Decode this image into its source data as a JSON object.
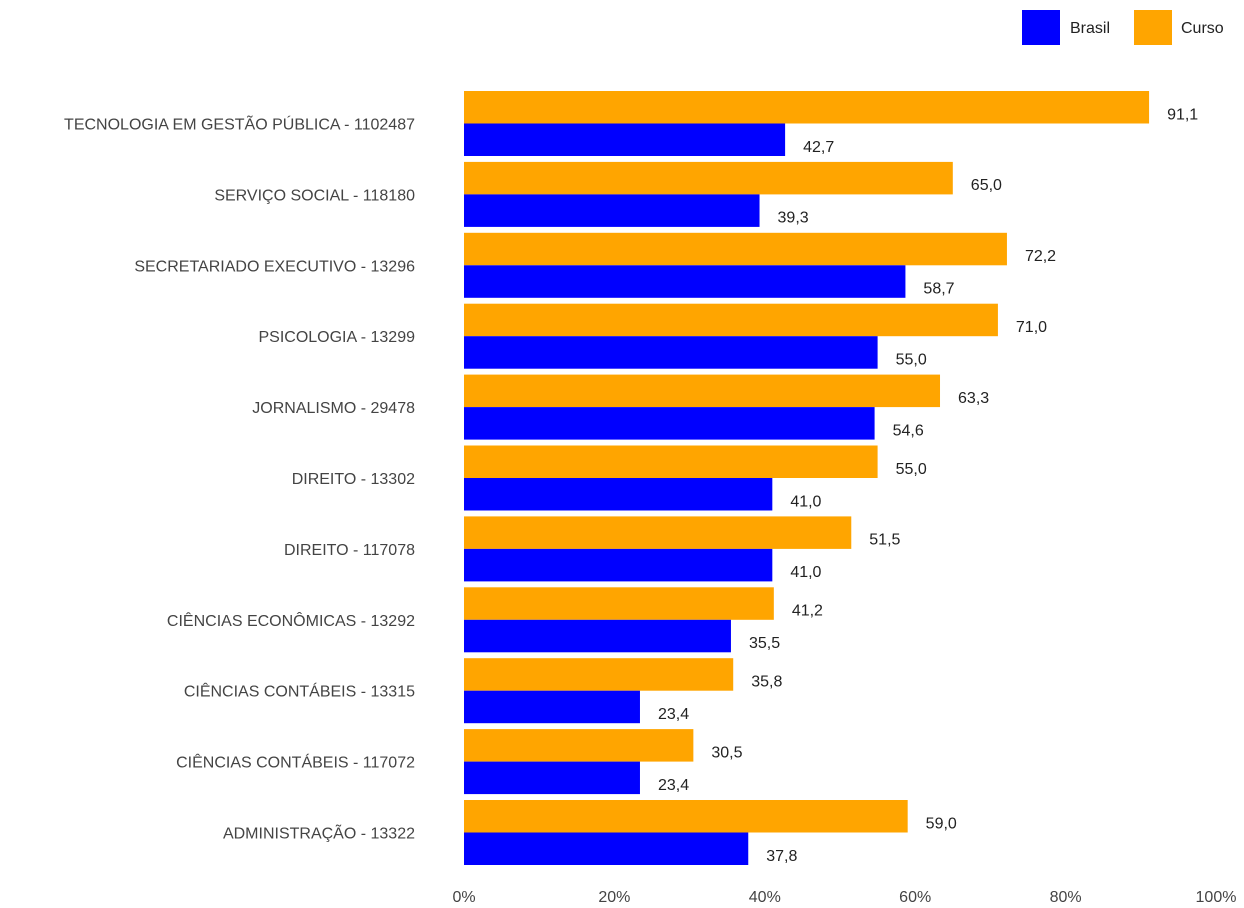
{
  "chart_data": {
    "type": "bar",
    "orientation": "horizontal",
    "categories": [
      "TECNOLOGIA EM GESTÃO PÚBLICA - 1102487",
      "SERVIÇO SOCIAL - 118180",
      "SECRETARIADO EXECUTIVO - 13296",
      "PSICOLOGIA - 13299",
      "JORNALISMO - 29478",
      "DIREITO - 13302",
      "DIREITO - 117078",
      "CIÊNCIAS ECONÔMICAS - 13292",
      "CIÊNCIAS CONTÁBEIS - 13315",
      "CIÊNCIAS CONTÁBEIS - 117072",
      "ADMINISTRAÇÃO - 13322"
    ],
    "series": [
      {
        "name": "Curso",
        "color": "#FFA500",
        "values": [
          91.1,
          65.0,
          72.2,
          71.0,
          63.3,
          55.0,
          51.5,
          41.2,
          35.8,
          30.5,
          59.0
        ],
        "labels": [
          "91,1",
          "65,0",
          "72,2",
          "71,0",
          "63,3",
          "55,0",
          "51,5",
          "41,2",
          "35,8",
          "30,5",
          "59,0"
        ]
      },
      {
        "name": "Brasil",
        "color": "#0000FF",
        "values": [
          42.7,
          39.3,
          58.7,
          55.0,
          54.6,
          41.0,
          41.0,
          35.5,
          23.4,
          23.4,
          37.8
        ],
        "labels": [
          "42,7",
          "39,3",
          "58,7",
          "55,0",
          "54,6",
          "41,0",
          "41,0",
          "35,5",
          "23,4",
          "23,4",
          "37,8"
        ]
      }
    ],
    "xlim": [
      0,
      100
    ],
    "xticks": [
      "0%",
      "20%",
      "40%",
      "60%",
      "80%",
      "100%"
    ],
    "title": "",
    "xlabel": "",
    "ylabel": "",
    "legend": {
      "position": "top-right",
      "items": [
        {
          "label": "Brasil",
          "color": "#0000FF"
        },
        {
          "label": "Curso",
          "color": "#FFA500"
        }
      ]
    },
    "grid": false
  }
}
